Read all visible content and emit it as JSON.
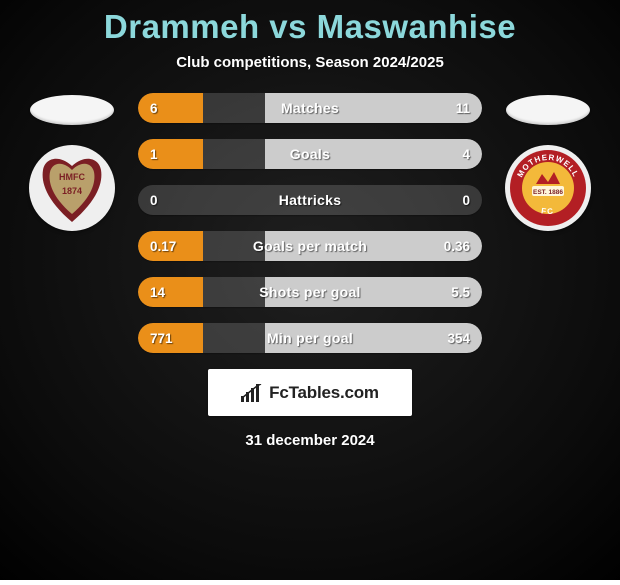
{
  "title": "Drammeh vs Maswanhise",
  "title_color": "#8cd8db",
  "subtitle": "Club competitions, Season 2024/2025",
  "background": {
    "top": "#1f1f1f",
    "bottom": "#050505",
    "vignette": "#000000"
  },
  "left_player": {
    "crest_bg": "#efefef",
    "crest_shape": "heart",
    "heart_outer": "#7b1f24",
    "heart_inner": "#b9a06b",
    "heart_text": "HMFC",
    "heart_year": "1874"
  },
  "right_player": {
    "crest_bg": "#efefef",
    "crest_shape": "circle",
    "ring_color": "#b31f24",
    "inner_color": "#f3b93a",
    "ring_text_top": "MOTHERWELL",
    "ring_text_bottom": "FC",
    "est_text": "EST. 1886"
  },
  "bar_colors": {
    "left": "#ea8f19",
    "right": "#cccccc",
    "track": "rgba(255,255,255,0.16)"
  },
  "bars": [
    {
      "label": "Matches",
      "left_text": "6",
      "right_text": "11",
      "left_pct": 19,
      "right_pct": 63
    },
    {
      "label": "Goals",
      "left_text": "1",
      "right_text": "4",
      "left_pct": 19,
      "right_pct": 63
    },
    {
      "label": "Hattricks",
      "left_text": "0",
      "right_text": "0",
      "left_pct": 0,
      "right_pct": 0
    },
    {
      "label": "Goals per match",
      "left_text": "0.17",
      "right_text": "0.36",
      "left_pct": 19,
      "right_pct": 63
    },
    {
      "label": "Shots per goal",
      "left_text": "14",
      "right_text": "5.5",
      "left_pct": 19,
      "right_pct": 63
    },
    {
      "label": "Min per goal",
      "left_text": "771",
      "right_text": "354",
      "left_pct": 19,
      "right_pct": 63
    }
  ],
  "brand": {
    "box_bg": "#ffffff",
    "text": "FcTables.com",
    "text_color": "#222222",
    "icon_color": "#222222"
  },
  "footer_date": "31 december 2024"
}
